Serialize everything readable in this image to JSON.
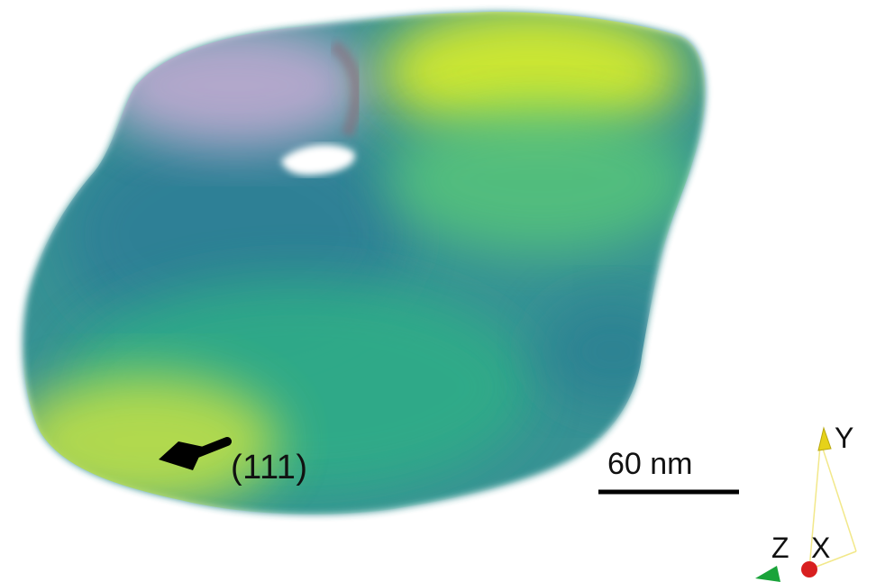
{
  "annotation": {
    "direction_label": "(111)"
  },
  "scale_bar": {
    "label": "60 nm"
  },
  "axes": {
    "y": "Y",
    "z": "Z",
    "x": "X"
  },
  "colors": {
    "purple": "#b9a9cf",
    "yellow": "#d7ea2e",
    "teal": "#2d8f92",
    "green": "#3fbf80",
    "lime": "#c6e24a",
    "arrow": "#000000",
    "axis_y": "#e6d21a",
    "axis_x": "#d81f1f",
    "axis_z": "#1aa33a"
  }
}
